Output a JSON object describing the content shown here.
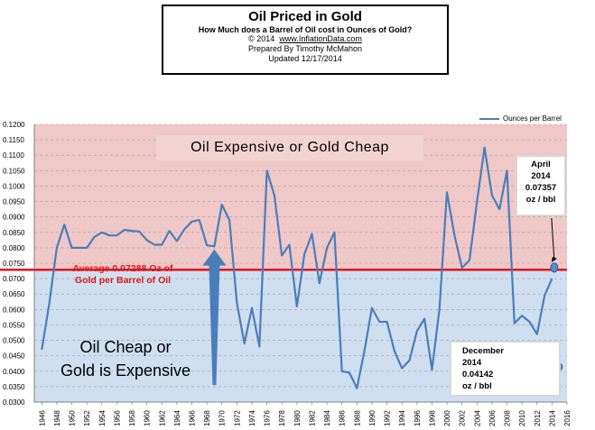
{
  "title": {
    "main": "Oil Priced in Gold",
    "subtitle": "How Much does a Barrel of Oil cost in Ounces of Gold?",
    "copyright": "© 2014",
    "url": "www.InflationData.com",
    "prepared_by": "Prepared  By Timothy McMahon",
    "updated": "Updated  12/17/2014"
  },
  "annotations": {
    "band_top": "Oil  Expensive or Gold Cheap",
    "band_bottom_line1": "Oil Cheap or",
    "band_bottom_line2": "Gold is Expensive",
    "avg_line1": "Average 0.07288 Oz of",
    "avg_line2": "Gold per Barrel of Oil",
    "april_lines": [
      "April",
      "2014",
      "0.07357",
      "oz / bbl"
    ],
    "dec_lines": [
      "December",
      "2014",
      "0.04142",
      "oz / bbl"
    ]
  },
  "colors": {
    "series": "#4a7ebb",
    "average_line": "#e0151b",
    "band_top": "#f0c8c8",
    "band_bottom": "#cfdff0",
    "arrow": "#4a7ebb"
  },
  "chart_data": {
    "type": "line",
    "legend": "top-right",
    "legend_entries": [
      "Ounces per Barrel"
    ],
    "average": 0.07288,
    "ylim": [
      0.03,
      0.12
    ],
    "xlim": [
      1945,
      2016
    ],
    "y_ticks": [
      "0.0300",
      "0.0350",
      "0.0400",
      "0.0450",
      "0.0500",
      "0.0550",
      "0.0600",
      "0.0650",
      "0.0700",
      "0.0750",
      "0.0800",
      "0.0850",
      "0.0900",
      "0.0950",
      "0.1000",
      "0.1050",
      "0.1100",
      "0.1150",
      "0.1200"
    ],
    "x_ticks": [
      "1946",
      "1948",
      "1950",
      "1952",
      "1954",
      "1956",
      "1958",
      "1960",
      "1962",
      "1964",
      "1966",
      "1968",
      "1970",
      "1972",
      "1974",
      "1976",
      "1978",
      "1980",
      "1982",
      "1984",
      "1986",
      "1988",
      "1990",
      "1992",
      "1994",
      "1996",
      "1998",
      "2000",
      "2002",
      "2004",
      "2006",
      "2008",
      "2010",
      "2012",
      "2014",
      "2016"
    ],
    "grid": true,
    "series": [
      {
        "name": "Ounces per Barrel",
        "x": [
          1946,
          1947,
          1948,
          1949,
          1950,
          1951,
          1952,
          1953,
          1954,
          1955,
          1956,
          1957,
          1958,
          1959,
          1960,
          1961,
          1962,
          1963,
          1964,
          1965,
          1966,
          1967,
          1968,
          1969,
          1970,
          1971,
          1972,
          1973,
          1974,
          1975,
          1976,
          1977,
          1978,
          1979,
          1980,
          1981,
          1982,
          1983,
          1984,
          1985,
          1986,
          1987,
          1988,
          1989,
          1990,
          1991,
          1992,
          1993,
          1994,
          1995,
          1996,
          1997,
          1998,
          1999,
          2000,
          2001,
          2002,
          2003,
          2004,
          2005,
          2006,
          2007,
          2008,
          2009,
          2010,
          2011,
          2012,
          2013,
          2014
        ],
        "y": [
          0.047,
          0.062,
          0.08,
          0.0875,
          0.08,
          0.08,
          0.08,
          0.0835,
          0.085,
          0.084,
          0.084,
          0.0858,
          0.0855,
          0.0853,
          0.0825,
          0.081,
          0.081,
          0.0855,
          0.0822,
          0.086,
          0.0885,
          0.089,
          0.0808,
          0.0805,
          0.094,
          0.089,
          0.062,
          0.049,
          0.0605,
          0.048,
          0.105,
          0.097,
          0.0775,
          0.081,
          0.061,
          0.078,
          0.0845,
          0.0685,
          0.08,
          0.085,
          0.04,
          0.0395,
          0.0345,
          0.0465,
          0.0605,
          0.056,
          0.056,
          0.0465,
          0.041,
          0.0435,
          0.053,
          0.057,
          0.0405,
          0.06,
          0.098,
          0.084,
          0.0735,
          0.076,
          0.095,
          0.1125,
          0.097,
          0.0925,
          0.105,
          0.0555,
          0.058,
          0.056,
          0.052,
          0.0645,
          0.07
        ]
      }
    ],
    "markers": [
      {
        "label": "April 2014",
        "x": 2014.3,
        "y": 0.07357
      },
      {
        "label": "December 2014",
        "x": 2014.9,
        "y": 0.04142
      }
    ],
    "arrow": {
      "x": 1969,
      "y_from": 0.0355,
      "y_to": 0.0795
    }
  }
}
